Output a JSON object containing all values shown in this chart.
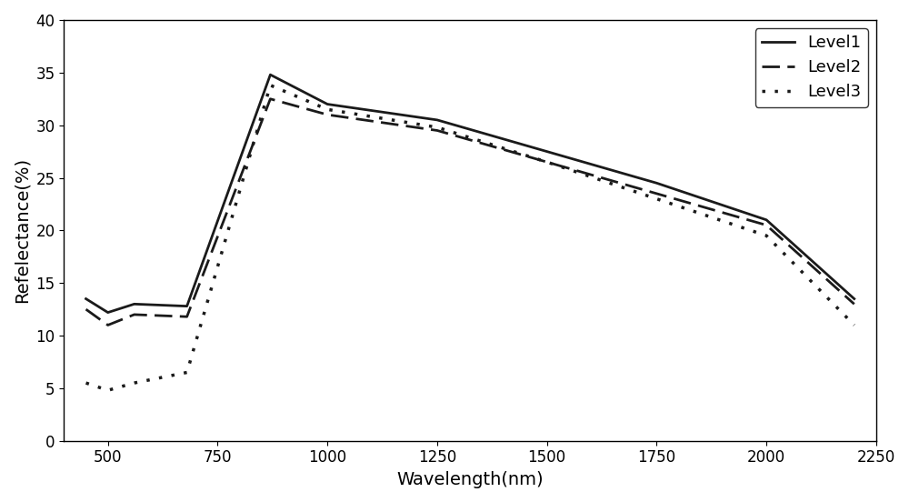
{
  "title": "",
  "xlabel": "Wavelength(nm)",
  "ylabel": "Refelectance(%)",
  "xlim": [
    400,
    2250
  ],
  "ylim": [
    0,
    40
  ],
  "xticks": [
    500,
    750,
    1000,
    1250,
    1500,
    1750,
    2000,
    2250
  ],
  "yticks": [
    0,
    5,
    10,
    15,
    20,
    25,
    30,
    35,
    40
  ],
  "level1": {
    "x": [
      450,
      500,
      560,
      680,
      870,
      1000,
      1250,
      1500,
      1750,
      2000,
      2200
    ],
    "y": [
      13.5,
      12.2,
      13.0,
      12.8,
      34.8,
      32.0,
      30.5,
      27.5,
      24.5,
      21.0,
      13.5
    ],
    "linestyle": "solid",
    "linewidth": 2.0,
    "color": "#1a1a1a",
    "label": "Level1"
  },
  "level2": {
    "x": [
      450,
      500,
      560,
      680,
      870,
      1000,
      1250,
      1500,
      1750,
      2000,
      2200
    ],
    "y": [
      12.5,
      11.0,
      12.0,
      11.8,
      32.5,
      31.0,
      29.5,
      26.5,
      23.5,
      20.5,
      13.0
    ],
    "linestyle": "dashed",
    "linewidth": 2.0,
    "color": "#1a1a1a",
    "label": "Level2",
    "dashes": [
      7,
      3
    ]
  },
  "level3": {
    "x": [
      450,
      500,
      560,
      680,
      870,
      1000,
      1250,
      1500,
      1750,
      2000,
      2200
    ],
    "y": [
      5.5,
      4.8,
      5.5,
      6.5,
      33.8,
      31.5,
      29.8,
      26.5,
      23.0,
      19.5,
      11.0
    ],
    "linestyle": "dotted",
    "linewidth": 2.5,
    "color": "#1a1a1a",
    "label": "Level3",
    "dotsize": [
      2,
      3
    ]
  },
  "legend_loc": "upper right",
  "legend_fontsize": 13,
  "axis_fontsize": 14,
  "tick_fontsize": 12,
  "background_color": "#ffffff",
  "figsize": [
    10.0,
    5.52
  ],
  "dpi": 100
}
